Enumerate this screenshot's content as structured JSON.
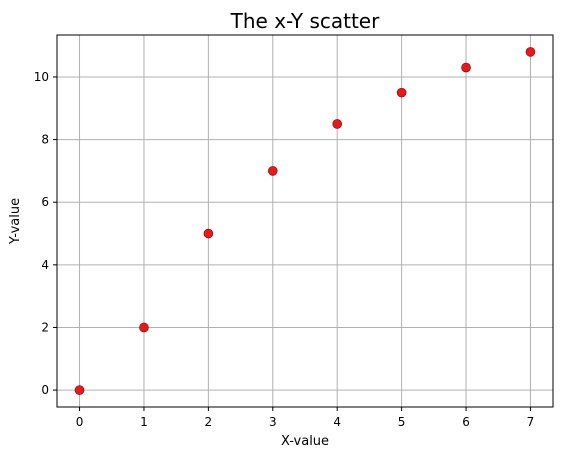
{
  "chart_data": {
    "type": "scatter",
    "title": "The x-Y scatter",
    "xlabel": "X-value",
    "ylabel": "Y-value",
    "x": [
      0,
      1,
      2,
      3,
      4,
      5,
      6,
      7
    ],
    "y": [
      0,
      2,
      5,
      7,
      8.5,
      9.5,
      10.3,
      10.8
    ],
    "xlim": [
      -0.35,
      7.35
    ],
    "ylim": [
      -0.54,
      11.34
    ],
    "xticks": [
      0,
      1,
      2,
      3,
      4,
      5,
      6,
      7
    ],
    "yticks": [
      0,
      2,
      4,
      6,
      8,
      10
    ],
    "grid": true,
    "marker_color": "#e41a1c",
    "marker_edge_color": "#8b0000"
  }
}
